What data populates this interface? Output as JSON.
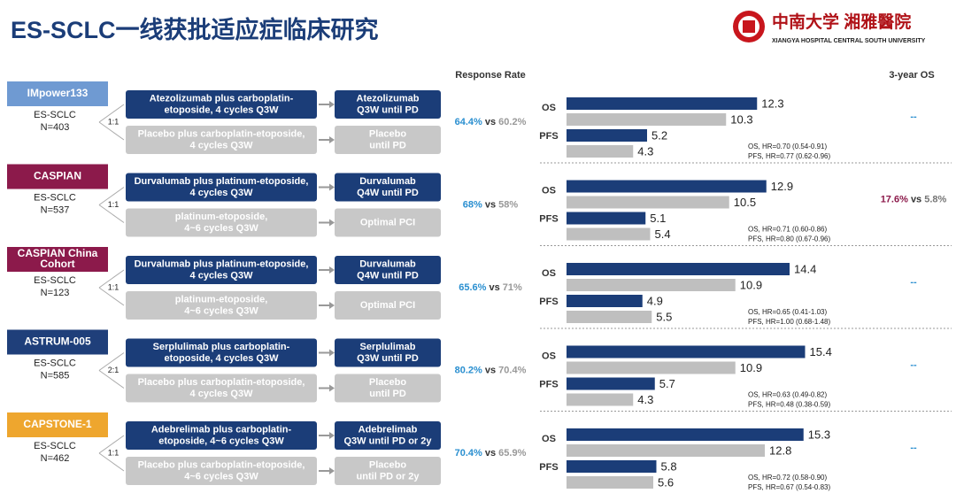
{
  "header": {
    "title": "ES-SCLC一线获批适应症临床研究",
    "logo_cn": "中南大学 湘雅醫院",
    "logo_en": "XIANGYA HOSPITAL CENTRAL SOUTH UNIVERSITY"
  },
  "columns": {
    "response_rate": "Response Rate",
    "os3": "3-year OS"
  },
  "trials": [
    {
      "name": [
        "IMpower133"
      ],
      "badge_color": "#6f9ad2",
      "population": "ES-SCLC",
      "n": "N=403",
      "ratio": "1:1",
      "arms": [
        {
          "treatment": [
            "Atezolizumab plus carboplatin-",
            "etoposide, 4 cycles Q3W"
          ],
          "maintenance": [
            "Atezolizumab",
            "Q3W until PD"
          ]
        },
        {
          "treatment": [
            "Placebo plus carboplatin-etoposide,",
            "4 cycles Q3W"
          ],
          "maintenance": [
            "Placebo",
            "until PD"
          ]
        }
      ],
      "rr": [
        "64.4%",
        "vs",
        "60.2%"
      ],
      "os_label": "OS",
      "pfs_label": "PFS",
      "os": [
        12.3,
        10.3
      ],
      "pfs": [
        5.2,
        4.3
      ],
      "hr": [
        "OS, HR=0.70 (0.54-0.91)",
        "PFS, HR=0.77 (0.62-0.96)"
      ],
      "os3": [
        "--"
      ]
    },
    {
      "name": [
        "CASPIAN"
      ],
      "badge_color": "#8c1a4b",
      "population": "ES-SCLC",
      "n": "N=537",
      "ratio": "1:1",
      "arms": [
        {
          "treatment": [
            "Durvalumab plus platinum-etoposide,",
            "4 cycles Q3W"
          ],
          "maintenance": [
            "Durvalumab",
            "Q4W until PD"
          ]
        },
        {
          "treatment": [
            "platinum-etoposide,",
            "4~6 cycles Q3W"
          ],
          "maintenance": [
            "Optimal PCI"
          ]
        }
      ],
      "rr": [
        "68%",
        "vs",
        "58%"
      ],
      "os_label": "OS",
      "pfs_label": "PFS",
      "os": [
        12.9,
        10.5
      ],
      "pfs": [
        5.1,
        5.4
      ],
      "hr": [
        "OS, HR=0.71 (0.60-0.86)",
        "PFS, HR=0.80 (0.67-0.96)"
      ],
      "os3": [
        "17.6%",
        "vs",
        "5.8%"
      ]
    },
    {
      "name": [
        "CASPIAN China",
        "Cohort"
      ],
      "badge_color": "#8c1a4b",
      "population": "ES-SCLC",
      "n": "N=123",
      "ratio": "1:1",
      "arms": [
        {
          "treatment": [
            "Durvalumab plus platinum-etoposide,",
            "4 cycles Q3W"
          ],
          "maintenance": [
            "Durvalumab",
            "Q4W until PD"
          ]
        },
        {
          "treatment": [
            "platinum-etoposide,",
            "4~6 cycles Q3W"
          ],
          "maintenance": [
            "Optimal PCI"
          ]
        }
      ],
      "rr": [
        "65.6%",
        "vs",
        "71%"
      ],
      "os_label": "OS",
      "pfs_label": "PFS",
      "os": [
        14.4,
        10.9
      ],
      "pfs": [
        4.9,
        5.5
      ],
      "hr": [
        "OS, HR=0.65 (0.41-1.03)",
        "PFS, HR=1.00 (0.68-1.48)"
      ],
      "os3": [
        "--"
      ]
    },
    {
      "name": [
        "ASTRUM-005"
      ],
      "badge_color": "#1f3f7a",
      "population": "ES-SCLC",
      "n": "N=585",
      "ratio": "2:1",
      "arms": [
        {
          "treatment": [
            "Serplulimab plus carboplatin-",
            "etoposide, 4 cycles Q3W"
          ],
          "maintenance": [
            "Serplulimab",
            "Q3W until PD"
          ]
        },
        {
          "treatment": [
            "Placebo plus carboplatin-etoposide,",
            "4 cycles Q3W"
          ],
          "maintenance": [
            "Placebo",
            "until PD"
          ]
        }
      ],
      "rr": [
        "80.2%",
        "vs",
        "70.4%"
      ],
      "os_label": "OS",
      "pfs_label": "PFS",
      "os": [
        15.4,
        10.9
      ],
      "pfs": [
        5.7,
        4.3
      ],
      "hr": [
        "OS, HR=0.63 (0.49-0.82)",
        "PFS, HR=0.48 (0.38-0.59)"
      ],
      "os3": [
        "--"
      ]
    },
    {
      "name": [
        "CAPSTONE-1"
      ],
      "badge_color": "#eea62e",
      "population": "ES-SCLC",
      "n": "N=462",
      "ratio": "1:1",
      "arms": [
        {
          "treatment": [
            "Adebrelimab plus carboplatin-",
            "etoposide, 4~6 cycles Q3W"
          ],
          "maintenance": [
            "Adebrelimab",
            "Q3W until PD or 2y"
          ]
        },
        {
          "treatment": [
            "Placebo plus carboplatin-etoposide,",
            "4~6 cycles Q3W"
          ],
          "maintenance": [
            "Placebo",
            "until PD or 2y"
          ]
        }
      ],
      "rr": [
        "70.4%",
        "vs",
        "65.9%"
      ],
      "os_label": "OS",
      "pfs_label": "PFS",
      "os": [
        15.3,
        12.8
      ],
      "pfs": [
        5.8,
        5.6
      ],
      "hr": [
        "OS, HR=0.72 (0.58-0.90)",
        "PFS, HR=0.67 (0.54-0.83)"
      ],
      "os3": [
        "--"
      ]
    }
  ]
}
